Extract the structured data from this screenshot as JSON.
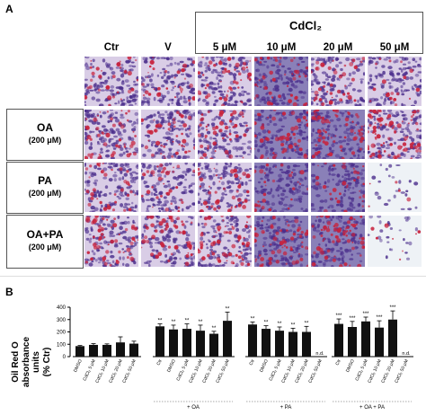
{
  "panel_a": {
    "label": "A",
    "cdcl2_header": "CdCl₂",
    "col_headers": [
      "Ctr",
      "V",
      "5 μM",
      "10 μM",
      "20 μM",
      "50 μM"
    ],
    "rows": [
      {
        "main": "",
        "sub": ""
      },
      {
        "main": "OA",
        "sub": "(200 μM)"
      },
      {
        "main": "PA",
        "sub": "(200 μM)"
      },
      {
        "main": "OA+PA",
        "sub": "(200 μM)"
      }
    ],
    "stain_colors": {
      "background": "#d9cde6",
      "nuclei": "#4b2e8c",
      "lipid": "#c8213b"
    }
  },
  "panel_b": {
    "label": "B",
    "ylabel_line1": "Oil Red O",
    "ylabel_line2": "absorbance",
    "ylabel_line3": "units",
    "ylabel_line4": "(% Ctr)",
    "group_labels": [
      "+ OA",
      "+ PA",
      "+ OA + PA"
    ],
    "nd_label": "n.d.",
    "bar_color": "#111111"
  },
  "chart_data": {
    "type": "bar",
    "ylim": [
      0,
      400
    ],
    "yticks": [
      0,
      100,
      200,
      300,
      400
    ],
    "groups": [
      {
        "name": "",
        "categories": [
          "DMSO",
          "CdCl₂ 5 μM",
          "CdCl₂ 10 μM",
          "CdCl₂ 20 μM",
          "CdCl₂ 50 μM"
        ],
        "values": [
          85,
          95,
          95,
          115,
          105
        ],
        "errors": [
          5,
          10,
          8,
          45,
          20
        ],
        "stars": [
          "",
          "",
          "",
          "",
          ""
        ]
      },
      {
        "name": "+ OA",
        "categories": [
          "Ctr",
          "DMSO",
          "CdCl₂ 5 μM",
          "CdCl₂ 10 μM",
          "CdCl₂ 20 μM",
          "CdCl₂ 50 μM"
        ],
        "values": [
          245,
          220,
          225,
          210,
          185,
          290
        ],
        "errors": [
          20,
          35,
          40,
          45,
          20,
          70
        ],
        "stars": [
          "**",
          "**",
          "**",
          "**",
          "**",
          "**"
        ]
      },
      {
        "name": "+ PA",
        "categories": [
          "Ctr",
          "DMSO",
          "CdCl₂ 5 μM",
          "CdCl₂ 10 μM",
          "CdCl₂ 20 μM",
          "CdCl₂ 50 μM"
        ],
        "values": [
          260,
          225,
          210,
          200,
          200,
          0
        ],
        "errors": [
          20,
          25,
          30,
          30,
          45,
          0
        ],
        "stars": [
          "**",
          "**",
          "**",
          "**",
          "**",
          ""
        ],
        "nd": [
          false,
          false,
          false,
          false,
          false,
          true
        ]
      },
      {
        "name": "+ OA + PA",
        "categories": [
          "Ctr",
          "DMSO",
          "CdCl₂ 5 μM",
          "CdCl₂ 10 μM",
          "CdCl₂ 20 μM",
          "CdCl₂ 50 μM"
        ],
        "values": [
          265,
          240,
          285,
          235,
          300,
          0
        ],
        "errors": [
          40,
          45,
          35,
          55,
          70,
          0
        ],
        "stars": [
          "***",
          "***",
          "***",
          "***",
          "***",
          ""
        ],
        "nd": [
          false,
          false,
          false,
          false,
          false,
          true
        ]
      }
    ]
  }
}
